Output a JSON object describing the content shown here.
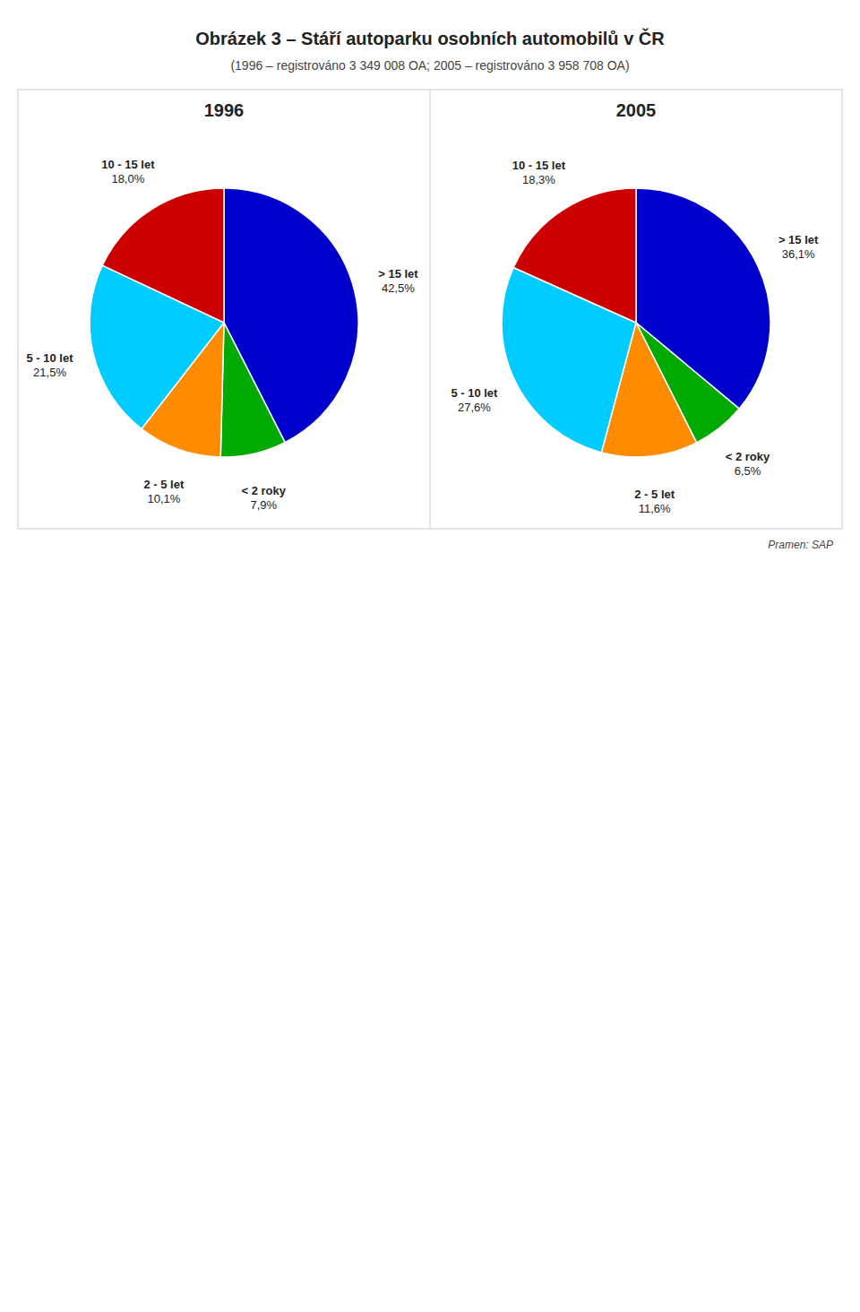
{
  "title": "Obrázek 3 – Stáří autoparku osobních automobilů v ČR",
  "subtitle": "(1996 – registrováno 3 349 008 OA; 2005 – registrováno 3 958 708 OA)",
  "annotations": [
    "Pramen: SAP"
  ],
  "chart_data": [
    {
      "type": "pie",
      "title": "1996",
      "categories": [
        "> 15 let",
        "< 2 roky",
        "2 - 5 let",
        "5 - 10 let",
        "10 - 15 let"
      ],
      "values": [
        42.5,
        7.9,
        10.1,
        21.5,
        18.0
      ],
      "value_labels": [
        "42,5%",
        "7,9%",
        "10,1%",
        "21,5%",
        "18,0%"
      ],
      "colors": [
        "#0000CC",
        "#00AA00",
        "#FF8C00",
        "#00CCFF",
        "#CC0000"
      ],
      "data_labels": true
    },
    {
      "type": "pie",
      "title": "2005",
      "categories": [
        "> 15 let",
        "< 2 roky",
        "2 - 5 let",
        "5 - 10 let",
        "10 - 15 let"
      ],
      "values": [
        36.1,
        6.5,
        11.6,
        27.6,
        18.3
      ],
      "value_labels": [
        "36,1%",
        "6,5%",
        "11,6%",
        "27,6%",
        "18,3%"
      ],
      "colors": [
        "#0000CC",
        "#00AA00",
        "#FF8C00",
        "#00CCFF",
        "#CC0000"
      ],
      "data_labels": true
    }
  ]
}
